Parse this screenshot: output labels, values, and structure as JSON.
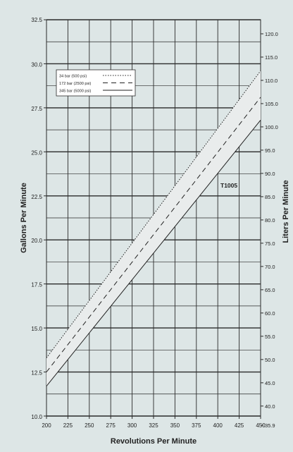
{
  "chart_data": {
    "type": "line",
    "title": "",
    "xlabel": "Revolutions Per Minute",
    "ylabel": "Gallons Per Minute",
    "y2label": "Liters Per Minute",
    "xlim": [
      200,
      450
    ],
    "ylim": [
      10.0,
      32.5
    ],
    "x_ticks": [
      "200",
      "225",
      "250",
      "275",
      "300",
      "325",
      "350",
      "375",
      "400",
      "425",
      "450"
    ],
    "y_ticks": [
      "10.0",
      "12.5",
      "15.0",
      "17.5",
      "20.0",
      "22.5",
      "25.0",
      "27.5",
      "30.0",
      "32.5"
    ],
    "y2_ticks": [
      "35.9",
      "40.0",
      "45.0",
      "50.0",
      "55.0",
      "60.0",
      "65.0",
      "70.0",
      "75.0",
      "80.0",
      "85.0",
      "90.0",
      "95.0",
      "100.0",
      "105.0",
      "110.0",
      "115.0",
      "120.0"
    ],
    "grid": true,
    "legend_position": "top-left",
    "band_label": "T1005",
    "series": [
      {
        "name": "34 bar (500 psi)",
        "style": "dotted",
        "x": [
          200,
          450
        ],
        "y": [
          13.3,
          29.6
        ]
      },
      {
        "name": "172 bar (2500 psi)",
        "style": "dashed",
        "x": [
          200,
          450
        ],
        "y": [
          12.5,
          28.1
        ]
      },
      {
        "name": "345 bar (5000 psi)",
        "style": "solid",
        "x": [
          200,
          450
        ],
        "y": [
          11.7,
          26.8
        ]
      }
    ],
    "colors": {
      "background": "#dde6e6",
      "grid": "#2a2a2a",
      "band": "#e9ecec",
      "line": "#222222"
    }
  }
}
